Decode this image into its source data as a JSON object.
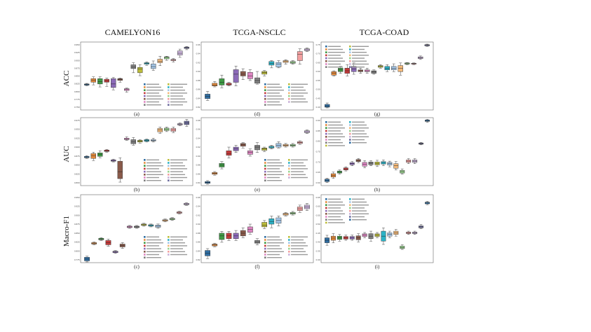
{
  "colors": [
    "#2f6ea3",
    "#e58a3c",
    "#3f9a45",
    "#c63b3b",
    "#8c6bb8",
    "#8a5a4a",
    "#df86c3",
    "#7f7f7f",
    "#bdbd3a",
    "#2cb2c6",
    "#a6c7e8",
    "#f3b97a",
    "#9ad48f",
    "#f2a0a0",
    "#c9b2d9",
    "#6e6e9e"
  ],
  "columns": [
    "CAMELYON16",
    "TCGA-NSCLC",
    "TCGA-COAD"
  ],
  "rows": [
    "ACC",
    "AUC",
    "Macro-F1"
  ],
  "chart_data": [
    {
      "type": "box",
      "panel": "(a)",
      "dataset": "CAMELYON16",
      "metric": "ACC",
      "legend_pos": "bottom-right",
      "yticks": [
        "0.950",
        "0.925",
        "0.900",
        "0.875",
        "0.850",
        "0.825",
        "0.800",
        "0.775",
        "0.750"
      ],
      "ylim": [
        0.74,
        0.97
      ],
      "boxes": [
        [
          0.822,
          0.824,
          0.826,
          0.828,
          0.83
        ],
        [
          0.825,
          0.834,
          0.84,
          0.846,
          0.852
        ],
        [
          0.818,
          0.828,
          0.836,
          0.846,
          0.852
        ],
        [
          0.82,
          0.834,
          0.838,
          0.844,
          0.848
        ],
        [
          0.808,
          0.816,
          0.828,
          0.846,
          0.85
        ],
        [
          0.834,
          0.84,
          0.844,
          0.846,
          0.848
        ],
        [
          0.8,
          0.806,
          0.81,
          0.812,
          0.814
        ],
        [
          0.866,
          0.88,
          0.885,
          0.893,
          0.9
        ],
        [
          0.856,
          0.866,
          0.878,
          0.884,
          0.893
        ],
        [
          0.891,
          0.895,
          0.897,
          0.9,
          0.903
        ],
        [
          0.874,
          0.88,
          0.887,
          0.896,
          0.906
        ],
        [
          0.89,
          0.9,
          0.905,
          0.912,
          0.922
        ],
        [
          0.908,
          0.913,
          0.918,
          0.92,
          0.922
        ],
        [
          0.902,
          0.907,
          0.909,
          0.911,
          0.914
        ],
        [
          0.918,
          0.926,
          0.932,
          0.94,
          0.946
        ],
        [
          0.944,
          0.948,
          0.951,
          0.953,
          0.955
        ]
      ]
    },
    {
      "type": "box",
      "panel": "(d)",
      "dataset": "TCGA-NSCLC",
      "metric": "ACC",
      "legend_pos": "bottom-right",
      "yticks": [
        "0.96",
        "0.94",
        "0.92",
        "0.90",
        "0.88",
        "0.86",
        "0.84",
        "0.82"
      ],
      "ylim": [
        0.815,
        0.965
      ],
      "boxes": [
        [
          0.836,
          0.84,
          0.845,
          0.85,
          0.856
        ],
        [
          0.866,
          0.868,
          0.87,
          0.874,
          0.878
        ],
        [
          0.864,
          0.87,
          0.876,
          0.884,
          0.892
        ],
        [
          0.868,
          0.87,
          0.872,
          0.874,
          0.876
        ],
        [
          0.868,
          0.876,
          0.894,
          0.904,
          0.912
        ],
        [
          0.882,
          0.89,
          0.894,
          0.9,
          0.906
        ],
        [
          0.88,
          0.884,
          0.89,
          0.898,
          0.904
        ],
        [
          0.872,
          0.874,
          0.88,
          0.886,
          0.9
        ],
        [
          0.89,
          0.894,
          0.898,
          0.9,
          0.902
        ],
        [
          0.908,
          0.914,
          0.918,
          0.922,
          0.924
        ],
        [
          0.908,
          0.91,
          0.916,
          0.92,
          0.924
        ],
        [
          0.916,
          0.92,
          0.922,
          0.924,
          0.926
        ],
        [
          0.916,
          0.918,
          0.92,
          0.922,
          0.924
        ],
        [
          0.916,
          0.924,
          0.938,
          0.944,
          0.95
        ],
        [
          0.944,
          0.946,
          0.948,
          0.95,
          0.952
        ]
      ]
    },
    {
      "type": "box",
      "panel": "(g)",
      "dataset": "TCGA-COAD",
      "metric": "ACC",
      "legend_pos": "top-left",
      "yticks": [
        "0.75",
        "0.70",
        "0.65",
        "0.60",
        "0.55",
        "0.50",
        "0.45",
        "0.40"
      ],
      "ylim": [
        0.38,
        0.77
      ],
      "boxes": [
        [
          0.392,
          0.396,
          0.402,
          0.412,
          0.42
        ],
        [
          0.575,
          0.58,
          0.59,
          0.6,
          0.605
        ],
        [
          0.59,
          0.6,
          0.61,
          0.62,
          0.63
        ],
        [
          0.575,
          0.59,
          0.605,
          0.62,
          0.64
        ],
        [
          0.585,
          0.6,
          0.615,
          0.63,
          0.65
        ],
        [
          0.59,
          0.6,
          0.605,
          0.61,
          0.62
        ],
        [
          0.59,
          0.6,
          0.605,
          0.61,
          0.62
        ],
        [
          0.585,
          0.59,
          0.6,
          0.605,
          0.61
        ],
        [
          0.62,
          0.625,
          0.63,
          0.635,
          0.64
        ],
        [
          0.6,
          0.61,
          0.62,
          0.63,
          0.64
        ],
        [
          0.6,
          0.61,
          0.62,
          0.63,
          0.645
        ],
        [
          0.58,
          0.6,
          0.62,
          0.635,
          0.65
        ],
        [
          0.64,
          0.643,
          0.646,
          0.65,
          0.652
        ],
        [
          0.64,
          0.643,
          0.646,
          0.648,
          0.65
        ],
        [
          0.67,
          0.675,
          0.68,
          0.685,
          0.69
        ],
        [
          0.745,
          0.748,
          0.752,
          0.755,
          0.758
        ]
      ]
    },
    {
      "type": "box",
      "panel": "(b)",
      "dataset": "CAMELYON16",
      "metric": "AUC",
      "legend_pos": "bottom-right",
      "yticks": [
        "0.975",
        "0.950",
        "0.925",
        "0.900",
        "0.875",
        "0.850",
        "0.825",
        "0.800"
      ],
      "ylim": [
        0.79,
        0.985
      ],
      "boxes": [
        [
          0.868,
          0.87,
          0.872,
          0.874,
          0.876
        ],
        [
          0.862,
          0.868,
          0.876,
          0.882,
          0.886
        ],
        [
          0.87,
          0.874,
          0.88,
          0.884,
          0.89
        ],
        [
          0.886,
          0.888,
          0.89,
          0.892,
          0.894
        ],
        [
          0.858,
          0.86,
          0.862,
          0.864,
          0.866
        ],
        [
          0.8,
          0.81,
          0.83,
          0.86,
          0.87
        ],
        [
          0.92,
          0.922,
          0.924,
          0.926,
          0.93
        ],
        [
          0.906,
          0.91,
          0.916,
          0.922,
          0.928
        ],
        [
          0.912,
          0.915,
          0.918,
          0.92,
          0.922
        ],
        [
          0.915,
          0.917,
          0.92,
          0.922,
          0.924
        ],
        [
          0.915,
          0.918,
          0.92,
          0.922,
          0.926
        ],
        [
          0.94,
          0.944,
          0.95,
          0.954,
          0.958
        ],
        [
          0.945,
          0.948,
          0.952,
          0.955,
          0.958
        ],
        [
          0.942,
          0.946,
          0.95,
          0.954,
          0.958
        ],
        [
          0.962,
          0.964,
          0.966,
          0.968,
          0.97
        ],
        [
          0.96,
          0.965,
          0.97,
          0.975,
          0.98
        ]
      ]
    },
    {
      "type": "box",
      "panel": "(e)",
      "dataset": "TCGA-NSCLC",
      "metric": "AUC",
      "legend_pos": "bottom-right",
      "yticks": [
        "0.98",
        "0.96",
        "0.94",
        "0.92",
        "0.90",
        "0.88",
        "0.86",
        "0.84"
      ],
      "ylim": [
        0.835,
        0.985
      ],
      "boxes": [
        [
          0.838,
          0.84,
          0.842,
          0.844,
          0.846
        ],
        [
          0.858,
          0.86,
          0.862,
          0.864,
          0.866
        ],
        [
          0.872,
          0.876,
          0.88,
          0.884,
          0.888
        ],
        [
          0.896,
          0.902,
          0.906,
          0.912,
          0.92
        ],
        [
          0.908,
          0.912,
          0.916,
          0.92,
          0.924
        ],
        [
          0.918,
          0.922,
          0.926,
          0.928,
          0.93
        ],
        [
          0.9,
          0.904,
          0.908,
          0.912,
          0.916
        ],
        [
          0.908,
          0.914,
          0.92,
          0.924,
          0.93
        ],
        [
          0.91,
          0.913,
          0.916,
          0.918,
          0.92
        ],
        [
          0.916,
          0.918,
          0.92,
          0.922,
          0.924
        ],
        [
          0.918,
          0.92,
          0.924,
          0.928,
          0.932
        ],
        [
          0.92,
          0.922,
          0.924,
          0.926,
          0.928
        ],
        [
          0.92,
          0.922,
          0.924,
          0.926,
          0.928
        ],
        [
          0.926,
          0.928,
          0.93,
          0.932,
          0.934
        ],
        [
          0.95,
          0.952,
          0.954,
          0.956,
          0.958
        ]
      ]
    },
    {
      "type": "box",
      "panel": "(h)",
      "dataset": "TCGA-COAD",
      "metric": "AUC",
      "legend_pos": "top-left",
      "yticks": [
        "0.90",
        "0.85",
        "0.80",
        "0.75",
        "0.70",
        "0.65",
        "0.60"
      ],
      "ylim": [
        0.585,
        0.91
      ],
      "boxes": [
        [
          0.6,
          0.604,
          0.61,
          0.616,
          0.62
        ],
        [
          0.62,
          0.626,
          0.634,
          0.642,
          0.65
        ],
        [
          0.64,
          0.645,
          0.65,
          0.655,
          0.66
        ],
        [
          0.655,
          0.66,
          0.665,
          0.67,
          0.675
        ],
        [
          0.68,
          0.685,
          0.69,
          0.695,
          0.7
        ],
        [
          0.695,
          0.7,
          0.705,
          0.71,
          0.715
        ],
        [
          0.67,
          0.678,
          0.688,
          0.696,
          0.705
        ],
        [
          0.68,
          0.685,
          0.692,
          0.698,
          0.705
        ],
        [
          0.676,
          0.684,
          0.69,
          0.698,
          0.706
        ],
        [
          0.68,
          0.688,
          0.694,
          0.7,
          0.708
        ],
        [
          0.675,
          0.683,
          0.69,
          0.696,
          0.702
        ],
        [
          0.66,
          0.668,
          0.68,
          0.69,
          0.7
        ],
        [
          0.64,
          0.645,
          0.652,
          0.658,
          0.665
        ],
        [
          0.69,
          0.696,
          0.702,
          0.708,
          0.714
        ],
        [
          0.69,
          0.696,
          0.702,
          0.708,
          0.714
        ],
        [
          0.78,
          0.783,
          0.786,
          0.789,
          0.792
        ],
        [
          0.888,
          0.892,
          0.896,
          0.899,
          0.902
        ]
      ]
    },
    {
      "type": "box",
      "panel": "(c)",
      "dataset": "CAMELYON16",
      "metric": "Macro-F1",
      "legend_pos": "bottom-right",
      "yticks": [
        "0.950",
        "0.925",
        "0.900",
        "0.875",
        "0.850",
        "0.825",
        "0.800",
        "0.775"
      ],
      "ylim": [
        0.77,
        0.96
      ],
      "boxes": [
        [
          0.772,
          0.775,
          0.78,
          0.785,
          0.788
        ],
        [
          0.82,
          0.822,
          0.824,
          0.826,
          0.828
        ],
        [
          0.832,
          0.834,
          0.836,
          0.838,
          0.84
        ],
        [
          0.816,
          0.82,
          0.826,
          0.832,
          0.836
        ],
        [
          0.796,
          0.798,
          0.8,
          0.802,
          0.804
        ],
        [
          0.81,
          0.814,
          0.818,
          0.822,
          0.826
        ],
        [
          0.866,
          0.868,
          0.87,
          0.872,
          0.874
        ],
        [
          0.866,
          0.868,
          0.87,
          0.872,
          0.874
        ],
        [
          0.872,
          0.874,
          0.876,
          0.878,
          0.88
        ],
        [
          0.87,
          0.872,
          0.874,
          0.876,
          0.878
        ],
        [
          0.866,
          0.869,
          0.872,
          0.875,
          0.878
        ],
        [
          0.884,
          0.886,
          0.888,
          0.89,
          0.892
        ],
        [
          0.888,
          0.89,
          0.892,
          0.894,
          0.896
        ],
        [
          0.906,
          0.908,
          0.91,
          0.912,
          0.914
        ],
        [
          0.93,
          0.932,
          0.934,
          0.936,
          0.938
        ]
      ]
    },
    {
      "type": "box",
      "panel": "(f)",
      "dataset": "TCGA-NSCLC",
      "metric": "Macro-F1",
      "legend_pos": "bottom-right",
      "yticks": [
        "0.96",
        "0.94",
        "0.92",
        "0.90",
        "0.88",
        "0.86",
        "0.84",
        "0.82"
      ],
      "ylim": [
        0.815,
        0.965
      ],
      "boxes": [
        [
          0.824,
          0.83,
          0.836,
          0.842,
          0.846
        ],
        [
          0.85,
          0.852,
          0.854,
          0.856,
          0.858
        ],
        [
          0.86,
          0.866,
          0.874,
          0.88,
          0.884
        ],
        [
          0.864,
          0.868,
          0.874,
          0.88,
          0.884
        ],
        [
          0.864,
          0.868,
          0.874,
          0.88,
          0.886
        ],
        [
          0.87,
          0.874,
          0.88,
          0.886,
          0.892
        ],
        [
          0.878,
          0.882,
          0.888,
          0.894,
          0.9
        ],
        [
          0.854,
          0.858,
          0.86,
          0.864,
          0.868
        ],
        [
          0.89,
          0.894,
          0.898,
          0.904,
          0.908
        ],
        [
          0.892,
          0.9,
          0.906,
          0.912,
          0.918
        ],
        [
          0.896,
          0.902,
          0.908,
          0.914,
          0.918
        ],
        [
          0.918,
          0.92,
          0.922,
          0.924,
          0.926
        ],
        [
          0.92,
          0.922,
          0.924,
          0.926,
          0.928
        ],
        [
          0.926,
          0.93,
          0.934,
          0.938,
          0.942
        ],
        [
          0.93,
          0.934,
          0.938,
          0.942,
          0.946
        ]
      ]
    },
    {
      "type": "box",
      "panel": "(i)",
      "dataset": "TCGA-COAD",
      "metric": "Macro-F1",
      "legend_pos": "top-left",
      "yticks": [
        "0.65",
        "0.60",
        "0.55",
        "0.50",
        "0.45",
        "0.40",
        "0.35",
        "0.30"
      ],
      "ylim": [
        0.27,
        0.68
      ],
      "boxes": [
        [
          0.375,
          0.39,
          0.405,
          0.42,
          0.435
        ],
        [
          0.39,
          0.405,
          0.418,
          0.43,
          0.445
        ],
        [
          0.4,
          0.41,
          0.42,
          0.43,
          0.44
        ],
        [
          0.405,
          0.412,
          0.42,
          0.428,
          0.436
        ],
        [
          0.405,
          0.412,
          0.42,
          0.428,
          0.436
        ],
        [
          0.395,
          0.408,
          0.42,
          0.432,
          0.445
        ],
        [
          0.42,
          0.428,
          0.436,
          0.444,
          0.452
        ],
        [
          0.4,
          0.415,
          0.43,
          0.445,
          0.46
        ],
        [
          0.42,
          0.428,
          0.436,
          0.444,
          0.452
        ],
        [
          0.38,
          0.4,
          0.43,
          0.46,
          0.48
        ],
        [
          0.42,
          0.43,
          0.44,
          0.45,
          0.46
        ],
        [
          0.43,
          0.44,
          0.45,
          0.46,
          0.47
        ],
        [
          0.35,
          0.355,
          0.362,
          0.37,
          0.378
        ],
        [
          0.44,
          0.445,
          0.45,
          0.455,
          0.46
        ],
        [
          0.44,
          0.445,
          0.45,
          0.455,
          0.46
        ],
        [
          0.475,
          0.48,
          0.486,
          0.492,
          0.5
        ],
        [
          0.62,
          0.625,
          0.63,
          0.635,
          0.64
        ]
      ]
    }
  ]
}
